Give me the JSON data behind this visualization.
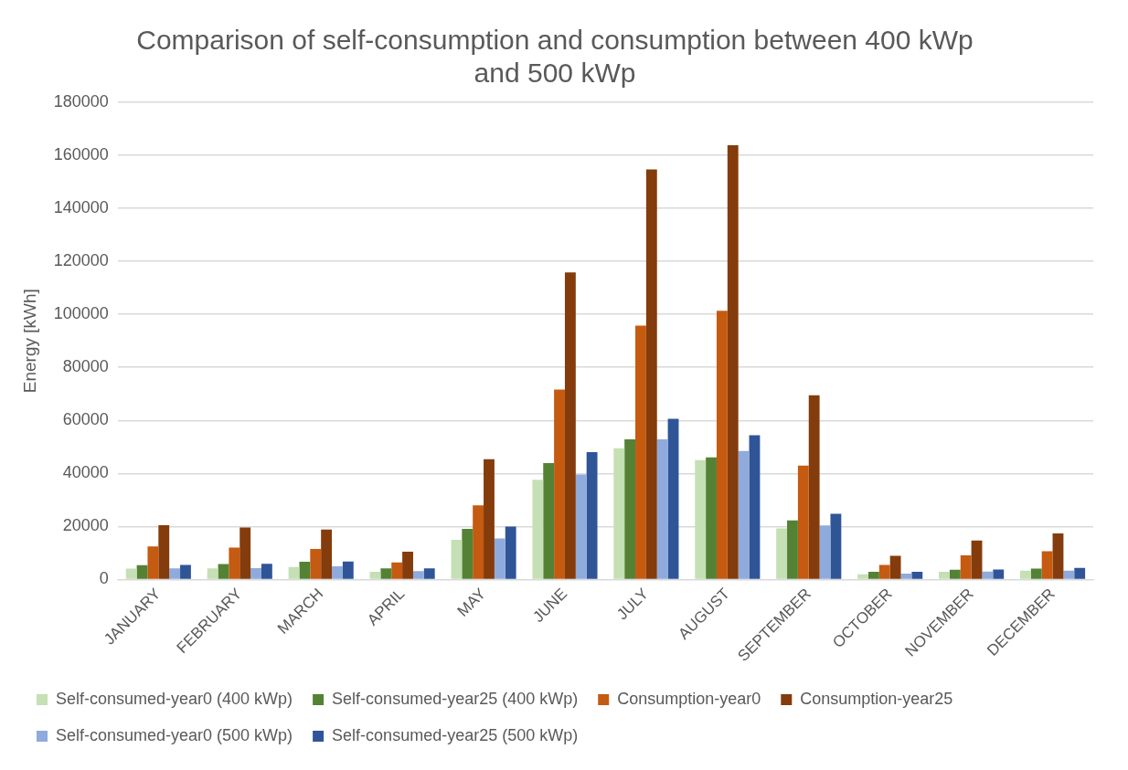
{
  "chart_data": {
    "type": "bar",
    "title": "Comparison of self-consumption and consumption between 400 kWp and 500 kWp",
    "ylabel": "Energy [kWh]",
    "categories": [
      "JANUARY",
      "FEBRUARY",
      "MARCH",
      "APRIL",
      "MAY",
      "JUNE",
      "JULY",
      "AUGUST",
      "SEPTEMBER",
      "OCTOBER",
      "NOVEMBER",
      "DECEMBER"
    ],
    "series": [
      {
        "name": "Self-consumed-year0 (400 kWp)",
        "color": "#c5e0b4",
        "values": [
          4100,
          4200,
          4700,
          2900,
          15000,
          37600,
          49500,
          45000,
          19300,
          2000,
          2900,
          3300
        ]
      },
      {
        "name": "Self-consumed-year25 (400 kWp)",
        "color": "#548235",
        "values": [
          5400,
          5800,
          6700,
          4200,
          19100,
          43900,
          52900,
          46100,
          22300,
          2900,
          3700,
          4100
        ]
      },
      {
        "name": "Consumption-year0",
        "color": "#c55a11",
        "values": [
          12500,
          12000,
          11500,
          6400,
          28000,
          71600,
          95800,
          101400,
          43000,
          5500,
          9100,
          10700
        ]
      },
      {
        "name": "Consumption-year25",
        "color": "#843c0c",
        "values": [
          20500,
          19600,
          18800,
          10500,
          45400,
          115800,
          154700,
          163800,
          69500,
          8900,
          14700,
          17400
        ]
      },
      {
        "name": "Self-consumed-year0 (500 kWp)",
        "color": "#8faadc",
        "values": [
          4200,
          4300,
          5000,
          3200,
          15500,
          39600,
          52900,
          48500,
          20400,
          2200,
          3000,
          3300
        ]
      },
      {
        "name": "Self-consumed-year25 (500 kWp)",
        "color": "#2f5597",
        "values": [
          5500,
          5900,
          6800,
          4200,
          20000,
          48000,
          60600,
          54400,
          24800,
          2900,
          3800,
          4400
        ]
      }
    ],
    "ylim": [
      0,
      180000
    ],
    "yticks": [
      0,
      20000,
      40000,
      60000,
      80000,
      100000,
      120000,
      140000,
      160000,
      180000
    ],
    "grid": "y",
    "legend": "bottom"
  }
}
